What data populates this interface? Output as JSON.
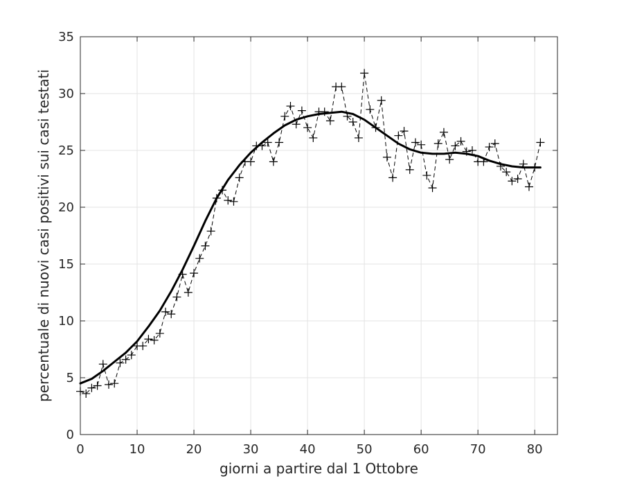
{
  "chart_data": {
    "type": "line",
    "title": "",
    "xlabel": "giorni a partire dal 1 Ottobre",
    "ylabel": "percentuale di nuovi casi positivi sui casi testati",
    "xlim": [
      0,
      84
    ],
    "ylim": [
      0,
      35
    ],
    "xticks": [
      0,
      10,
      20,
      30,
      40,
      50,
      60,
      70,
      80
    ],
    "yticks": [
      0,
      5,
      10,
      15,
      20,
      25,
      30,
      35
    ],
    "grid": true,
    "legend": "none",
    "series": [
      {
        "style": "dashed line with plus markers",
        "color": "#000000",
        "x": [
          0,
          1,
          2,
          3,
          4,
          5,
          6,
          7,
          8,
          9,
          10,
          11,
          12,
          13,
          14,
          15,
          16,
          17,
          18,
          19,
          20,
          21,
          22,
          23,
          24,
          25,
          26,
          27,
          28,
          29,
          30,
          31,
          32,
          33,
          34,
          35,
          36,
          37,
          38,
          39,
          40,
          41,
          42,
          43,
          44,
          45,
          46,
          47,
          48,
          49,
          50,
          51,
          52,
          53,
          54,
          55,
          56,
          57,
          58,
          59,
          60,
          61,
          62,
          63,
          64,
          65,
          66,
          67,
          68,
          69,
          70,
          71,
          72,
          73,
          74,
          75,
          76,
          77,
          78,
          79,
          80,
          81
        ],
        "y": [
          3.8,
          3.6,
          4.1,
          4.3,
          6.2,
          4.4,
          4.5,
          6.3,
          6.6,
          7.0,
          7.8,
          7.8,
          8.4,
          8.3,
          8.9,
          10.8,
          10.6,
          12.1,
          14.1,
          12.5,
          14.2,
          15.5,
          16.6,
          17.9,
          20.8,
          21.5,
          20.6,
          20.5,
          22.6,
          24.0,
          24.0,
          25.4,
          25.4,
          25.7,
          24.0,
          25.7,
          28.0,
          28.9,
          27.3,
          28.5,
          27.0,
          26.1,
          28.4,
          28.4,
          27.6,
          30.6,
          30.6,
          28.0,
          27.5,
          26.1,
          31.8,
          28.6,
          27.0,
          29.4,
          24.4,
          22.6,
          26.3,
          26.7,
          23.3,
          25.7,
          25.5,
          22.8,
          21.7,
          25.6,
          26.6,
          24.2,
          25.4,
          25.8,
          24.9,
          25.0,
          24.0,
          24.0,
          25.3,
          25.6,
          23.6,
          23.1,
          22.3,
          22.5,
          23.8,
          21.8,
          23.5,
          25.7
        ]
      },
      {
        "style": "solid thick line (trend)",
        "color": "#000000",
        "x": [
          0,
          2,
          4,
          6,
          8,
          10,
          12,
          14,
          16,
          18,
          20,
          22,
          24,
          26,
          28,
          30,
          32,
          34,
          36,
          38,
          40,
          42,
          44,
          46,
          48,
          50,
          52,
          54,
          56,
          58,
          60,
          62,
          64,
          66,
          68,
          70,
          72,
          74,
          76,
          78,
          80,
          81
        ],
        "y": [
          4.5,
          4.9,
          5.6,
          6.4,
          7.2,
          8.2,
          9.5,
          10.9,
          12.6,
          14.5,
          16.6,
          18.8,
          20.8,
          22.4,
          23.7,
          24.8,
          25.7,
          26.5,
          27.2,
          27.7,
          28.0,
          28.2,
          28.3,
          28.4,
          28.2,
          27.7,
          27.0,
          26.3,
          25.6,
          25.1,
          24.8,
          24.7,
          24.7,
          24.8,
          24.7,
          24.5,
          24.1,
          23.8,
          23.6,
          23.5,
          23.5,
          23.5
        ]
      }
    ]
  }
}
